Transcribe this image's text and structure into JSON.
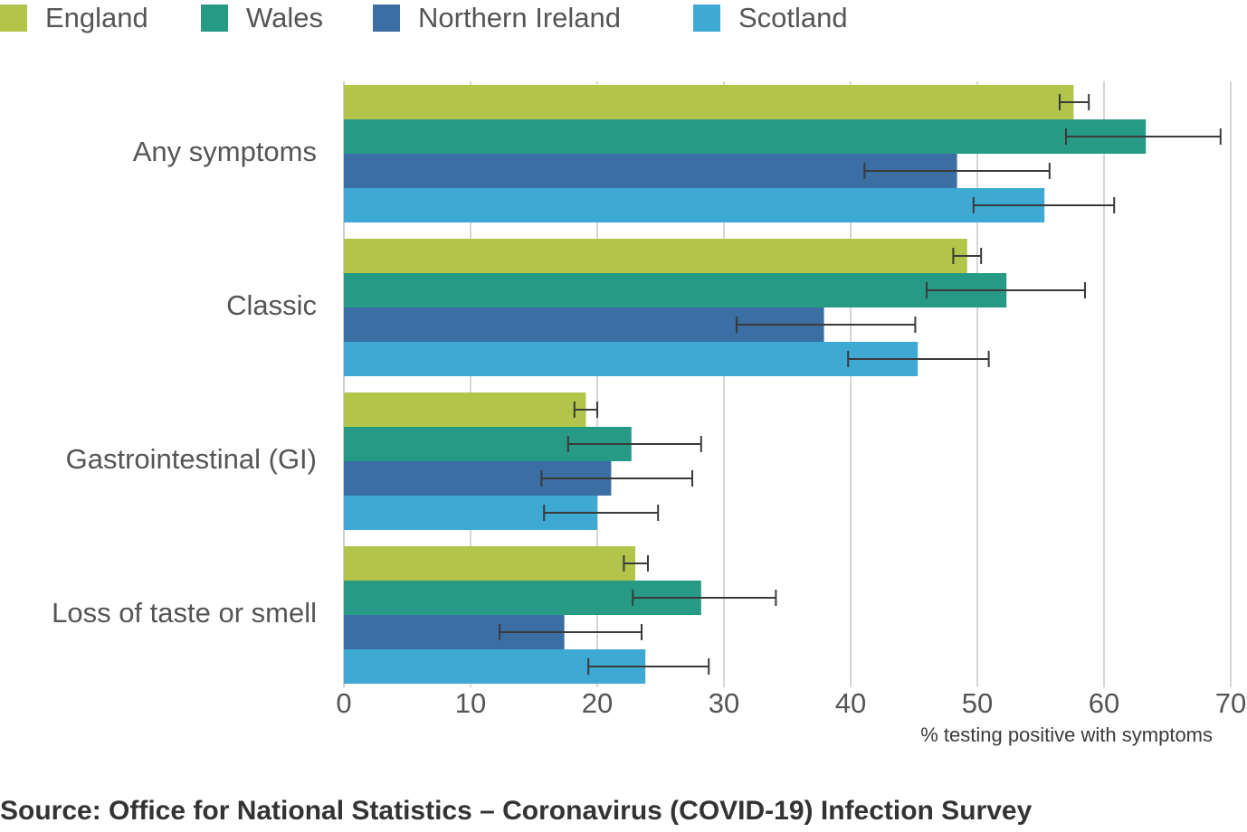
{
  "chart_data": {
    "type": "bar",
    "orientation": "horizontal",
    "categories": [
      "Any symptoms",
      "Classic",
      "Gastrointestinal (GI)",
      "Loss of taste or smell"
    ],
    "series": [
      {
        "name": "England",
        "color": "#b2c44a",
        "values": [
          57.6,
          49.2,
          19.1,
          23.0
        ],
        "ci_low": [
          56.5,
          48.1,
          18.2,
          22.1
        ],
        "ci_high": [
          58.8,
          50.3,
          20.0,
          24.0
        ]
      },
      {
        "name": "Wales",
        "color": "#279a86",
        "values": [
          63.3,
          52.3,
          22.7,
          28.2
        ],
        "ci_low": [
          57.0,
          46.0,
          17.7,
          22.8
        ],
        "ci_high": [
          69.2,
          58.5,
          28.2,
          34.1
        ]
      },
      {
        "name": "Northern Ireland",
        "color": "#3b6fa3",
        "values": [
          48.4,
          37.9,
          21.1,
          17.4
        ],
        "ci_low": [
          41.1,
          31.0,
          15.6,
          12.3
        ],
        "ci_high": [
          55.7,
          45.1,
          27.5,
          23.5
        ]
      },
      {
        "name": "Scotland",
        "color": "#3ea9d3",
        "values": [
          55.3,
          45.3,
          20.0,
          23.8
        ],
        "ci_low": [
          49.7,
          39.8,
          15.8,
          19.3
        ],
        "ci_high": [
          60.8,
          50.9,
          24.8,
          28.8
        ]
      }
    ],
    "xlim": [
      0,
      70
    ],
    "xticks": [
      0,
      10,
      20,
      30,
      40,
      50,
      60,
      70
    ],
    "xlabel": "% testing positive with symptoms",
    "grid": "vertical",
    "legend_position": "top-left",
    "error_bars": true
  },
  "source": "Source: Office for National Statistics – Coronavirus (COVID-19) Infection Survey"
}
